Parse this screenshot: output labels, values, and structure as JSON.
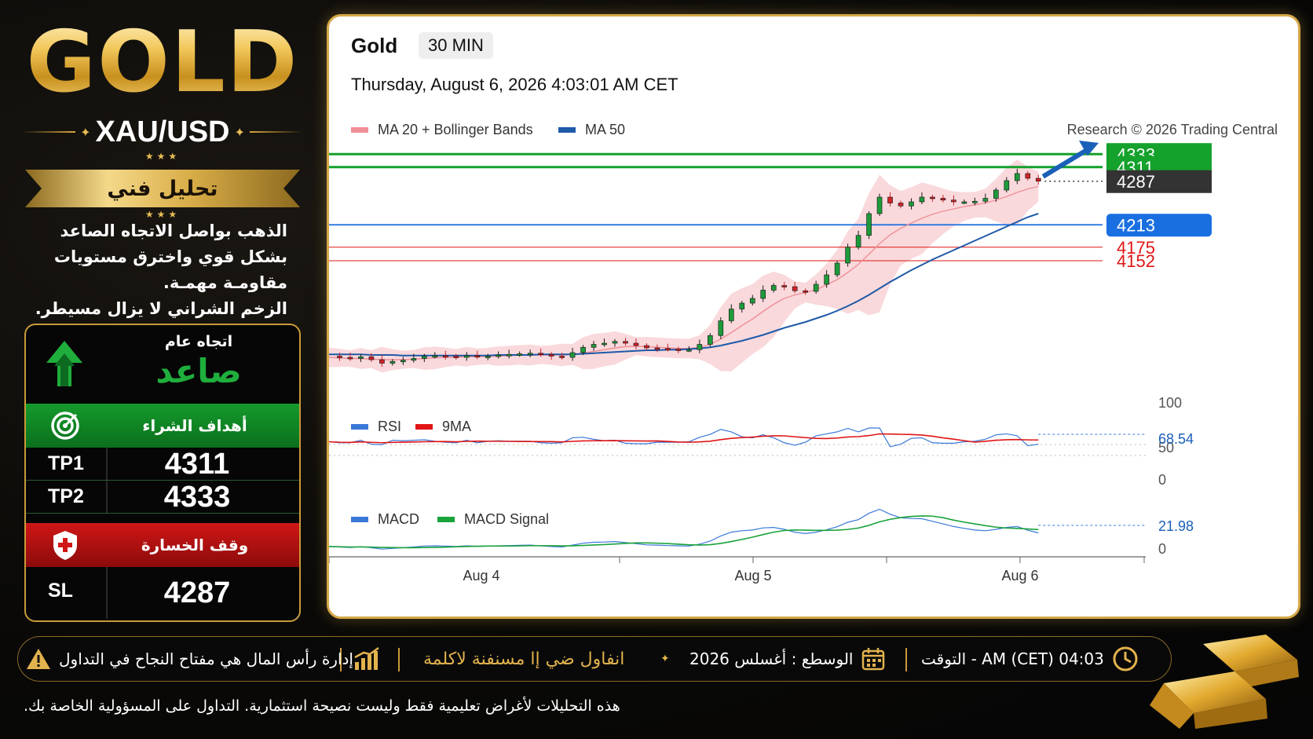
{
  "brand": {
    "title": "GOLD",
    "pair": "XAU/USD",
    "ribbon": "تحليل فني",
    "description": [
      "الذهب بواصل الاتجاه الصاعد",
      "بشكل قوي واخترق مستويات",
      "مقاومـة مهمـة.",
      "الزخم  الشراني لا يزال مسيطر."
    ]
  },
  "card": {
    "trend_label": "اتجاه عام",
    "trend_value": "صاعد",
    "targets_label": "أهداف الشراء",
    "targets": [
      {
        "key": "TP1",
        "value": "4311"
      },
      {
        "key": "TP2",
        "value": "4333"
      }
    ],
    "stop_label": "وقف الخسارة",
    "stop": {
      "key": "SL",
      "value": "4287"
    },
    "colors": {
      "green": "#159a2c",
      "red": "#d01616",
      "gold": "#c89a3a"
    }
  },
  "chart": {
    "title": "Gold",
    "timeframe": "30 MIN",
    "datetime": "Thursday, August 6, 2026 4:03:01 AM CET",
    "legend_price": [
      {
        "label": "MA 20 + Bollinger Bands",
        "color": "#f08f97"
      },
      {
        "label": "MA 50",
        "color": "#1f5aa8"
      }
    ],
    "credit": "Research © 2026 Trading Central",
    "legend_rsi": [
      {
        "label": "RSI",
        "color": "#3a78d8"
      },
      {
        "label": "9MA",
        "color": "#e01515"
      }
    ],
    "legend_macd": [
      {
        "label": "MACD",
        "color": "#3a78d8"
      },
      {
        "label": "MACD Signal",
        "color": "#1aa33a"
      }
    ],
    "x_labels": [
      "Aug 4",
      "Aug 5",
      "Aug 6"
    ]
  },
  "chart_data": {
    "type": "line",
    "title": "Gold",
    "timeframe": "30 MIN",
    "price_levels": [
      {
        "value": 4333,
        "label": "4333",
        "color": "#14a12c",
        "kind": "target"
      },
      {
        "value": 4311,
        "label": "4311",
        "color": "#14a12c",
        "kind": "target"
      },
      {
        "value": 4287,
        "label": "4287",
        "color": "#333333",
        "kind": "current"
      },
      {
        "value": 4213,
        "label": "4213",
        "color": "#1a6fe0",
        "kind": "pivot"
      },
      {
        "value": 4175,
        "label": "4175",
        "color": "#e01515",
        "kind": "support"
      },
      {
        "value": 4152,
        "label": "4152",
        "color": "#e01515",
        "kind": "support"
      }
    ],
    "series": [
      {
        "name": "Gold",
        "x": [
          0,
          2,
          4,
          6,
          8,
          10,
          12,
          14,
          16,
          18,
          20,
          22,
          24,
          26,
          28,
          30,
          32,
          34,
          36,
          38,
          40,
          42,
          44,
          46,
          48,
          50,
          52,
          54,
          56,
          58,
          60,
          62,
          64,
          66,
          68,
          70,
          72,
          74,
          76,
          78,
          80,
          82,
          84,
          86,
          88,
          90,
          92,
          94,
          96,
          98,
          100,
          102,
          104,
          106,
          108,
          110,
          112,
          114,
          116,
          118,
          120,
          122,
          124,
          126,
          128,
          130,
          132,
          134
        ],
        "values": [
          3990,
          3988,
          3986,
          3989,
          3984,
          3978,
          3981,
          3983,
          3986,
          3990,
          3991,
          3990,
          3988,
          3991,
          3989,
          3990,
          3992,
          3993,
          3994,
          3995,
          3993,
          3990,
          3988,
          3996,
          4005,
          4010,
          4012,
          4015,
          4012,
          4008,
          4004,
          4003,
          4002,
          4001,
          4001,
          4010,
          4025,
          4050,
          4070,
          4080,
          4088,
          4102,
          4110,
          4108,
          4101,
          4100,
          4112,
          4128,
          4148,
          4175,
          4195,
          4232,
          4260,
          4250,
          4245,
          4252,
          4260,
          4258,
          4255,
          4252,
          4252,
          4253,
          4258,
          4272,
          4288,
          4300,
          4292,
          4287
        ]
      },
      {
        "name": "MA 20",
        "values": [
          3988,
          3987,
          3986,
          3986,
          3985,
          3984,
          3984,
          3984,
          3985,
          3986,
          3987,
          3988,
          3988,
          3989,
          3989,
          3990,
          3990,
          3991,
          3992,
          3992,
          3992,
          3992,
          3992,
          3993,
          3995,
          3998,
          4001,
          4004,
          4006,
          4007,
          4006,
          4005,
          4004,
          4003,
          4003,
          4005,
          4010,
          4019,
          4030,
          4042,
          4053,
          4066,
          4078,
          4088,
          4094,
          4098,
          4103,
          4111,
          4120,
          4132,
          4146,
          4163,
          4181,
          4196,
          4207,
          4216,
          4224,
          4231,
          4236,
          4240,
          4244,
          4247,
          4250,
          4255,
          4261,
          4268,
          4274,
          4278
        ]
      },
      {
        "name": "MA 50",
        "values": [
          3993,
          3993,
          3993,
          3993,
          3992,
          3992,
          3992,
          3991,
          3991,
          3991,
          3991,
          3991,
          3991,
          3991,
          3991,
          3991,
          3992,
          3992,
          3992,
          3992,
          3993,
          3993,
          3993,
          3993,
          3994,
          3995,
          3996,
          3997,
          3998,
          3999,
          4000,
          4000,
          4001,
          4001,
          4002,
          4003,
          4005,
          4008,
          4012,
          4016,
          4021,
          4026,
          4032,
          4038,
          4043,
          4048,
          4054,
          4060,
          4067,
          4075,
          4084,
          4094,
          4105,
          4116,
          4126,
          4136,
          4145,
          4154,
          4162,
          4170,
          4178,
          4186,
          4194,
          4202,
          4210,
          4218,
          4226,
          4232
        ]
      }
    ],
    "rsi": {
      "value": 68.54,
      "label": "68.54",
      "ticks": [
        "100",
        "50",
        "0"
      ]
    },
    "macd": {
      "value": 21.98,
      "label": "21.98",
      "ticks": [
        "0"
      ]
    },
    "x_labels": [
      "Aug 4",
      "Aug 5",
      "Aug 6"
    ]
  },
  "bottom": {
    "time": "04:03 AM (CET) - التوقت",
    "date": "الوسطع : أغسلس 2026",
    "slogan": "انفاول ضي إا مسنفنة لاكلمة",
    "risk": "إدارة رأس المال هي مفتاح النجاح في التداول",
    "disclaimer": "هذه التحليلات لأغراض تعليمية فقط وليست نصيحة استثمارية. التداول على المسؤولية الخاصة بك."
  }
}
